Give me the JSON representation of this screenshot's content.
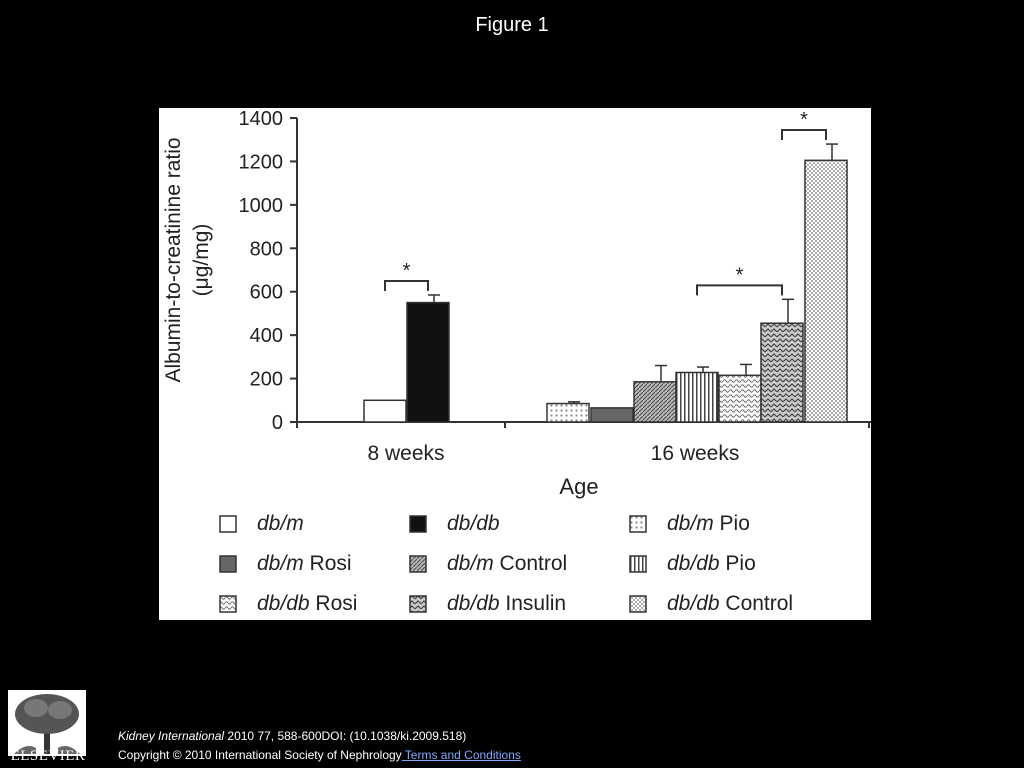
{
  "slide": {
    "title": "Figure 1",
    "citation_journal": "Kidney International",
    "citation_rest": " 2010 77, 588-600DOI: (10.1038/ki.2009.518)",
    "copyright": "Copyright © 2010 International Society of Nephrology",
    "terms_link": " Terms and Conditions",
    "publisher": "ELSEVIER"
  },
  "chart_data": {
    "type": "bar",
    "title": "",
    "xlabel": "Age",
    "ylabel_line1": "Albumin-to-creatinine ratio",
    "ylabel_line2": "(μg/mg)",
    "ylim": [
      0,
      1400
    ],
    "yticks": [
      0,
      200,
      400,
      600,
      800,
      1000,
      1200,
      1400
    ],
    "grid": false,
    "legend_position": "bottom",
    "categories": [
      "8 weeks",
      "16 weeks"
    ],
    "series": [
      {
        "name": "db/m",
        "strain": "db/m",
        "treatment": "",
        "pattern": "white",
        "category": "8 weeks",
        "value": 100,
        "error": 0
      },
      {
        "name": "db/db",
        "strain": "db/db",
        "treatment": "",
        "pattern": "black",
        "category": "8 weeks",
        "value": 550,
        "error": 35
      },
      {
        "name": "db/m Pio",
        "strain": "db/m",
        "treatment": " Pio",
        "pattern": "dots",
        "category": "16 weeks",
        "value": 85,
        "error": 8
      },
      {
        "name": "db/m Rosi",
        "strain": "db/m",
        "treatment": " Rosi",
        "pattern": "darkgray",
        "category": "16 weeks",
        "value": 65,
        "error": 0
      },
      {
        "name": "db/m Control",
        "strain": "db/m",
        "treatment": " Control",
        "pattern": "diag",
        "category": "16 weeks",
        "value": 185,
        "error": 75
      },
      {
        "name": "db/db Pio",
        "strain": "db/db",
        "treatment": " Pio",
        "pattern": "vlines",
        "category": "16 weeks",
        "value": 228,
        "error": 25
      },
      {
        "name": "db/db Rosi",
        "strain": "db/db",
        "treatment": " Rosi",
        "pattern": "wave",
        "category": "16 weeks",
        "value": 215,
        "error": 50
      },
      {
        "name": "db/db Insulin",
        "strain": "db/db",
        "treatment": " Insulin",
        "pattern": "zigzag",
        "category": "16 weeks",
        "value": 455,
        "error": 110
      },
      {
        "name": "db/db Control",
        "strain": "db/db",
        "treatment": " Control",
        "pattern": "checker",
        "category": "16 weeks",
        "value": 1205,
        "error": 75
      }
    ],
    "legend_order": [
      0,
      1,
      2,
      3,
      4,
      5,
      6,
      7,
      8
    ],
    "significance": [
      {
        "label": "*",
        "from": 0,
        "to": 1
      },
      {
        "label": "*",
        "from": 5,
        "to": 7
      },
      {
        "label": "*",
        "from": 7,
        "to": 8
      }
    ]
  }
}
